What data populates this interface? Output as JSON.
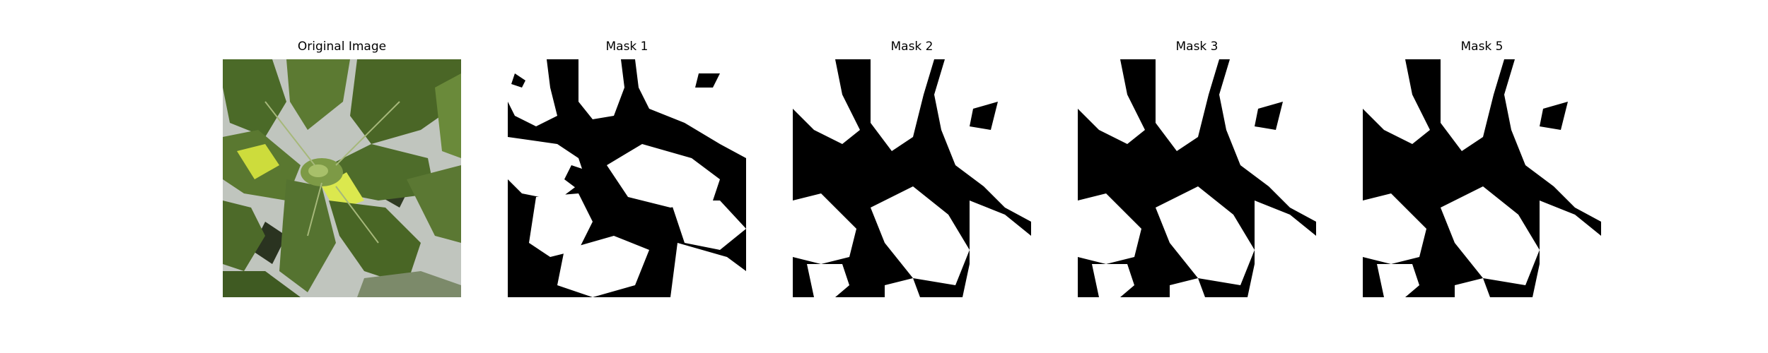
{
  "panels": [
    {
      "title": "Original Image",
      "kind": "photo"
    },
    {
      "title": "Mask 1",
      "kind": "mask"
    },
    {
      "title": "Mask 2",
      "kind": "mask"
    },
    {
      "title": "Mask 3",
      "kind": "mask"
    },
    {
      "title": "Mask 5",
      "kind": "mask"
    }
  ],
  "colors": {
    "mask_foreground": "#ffffff",
    "mask_background": "#000000",
    "leaf_dark": "#3f5a22",
    "leaf_mid": "#5e7a34",
    "leaf_light": "#8aa24e",
    "highlight": "#d8e84a",
    "backdrop": "#c9cec8"
  }
}
